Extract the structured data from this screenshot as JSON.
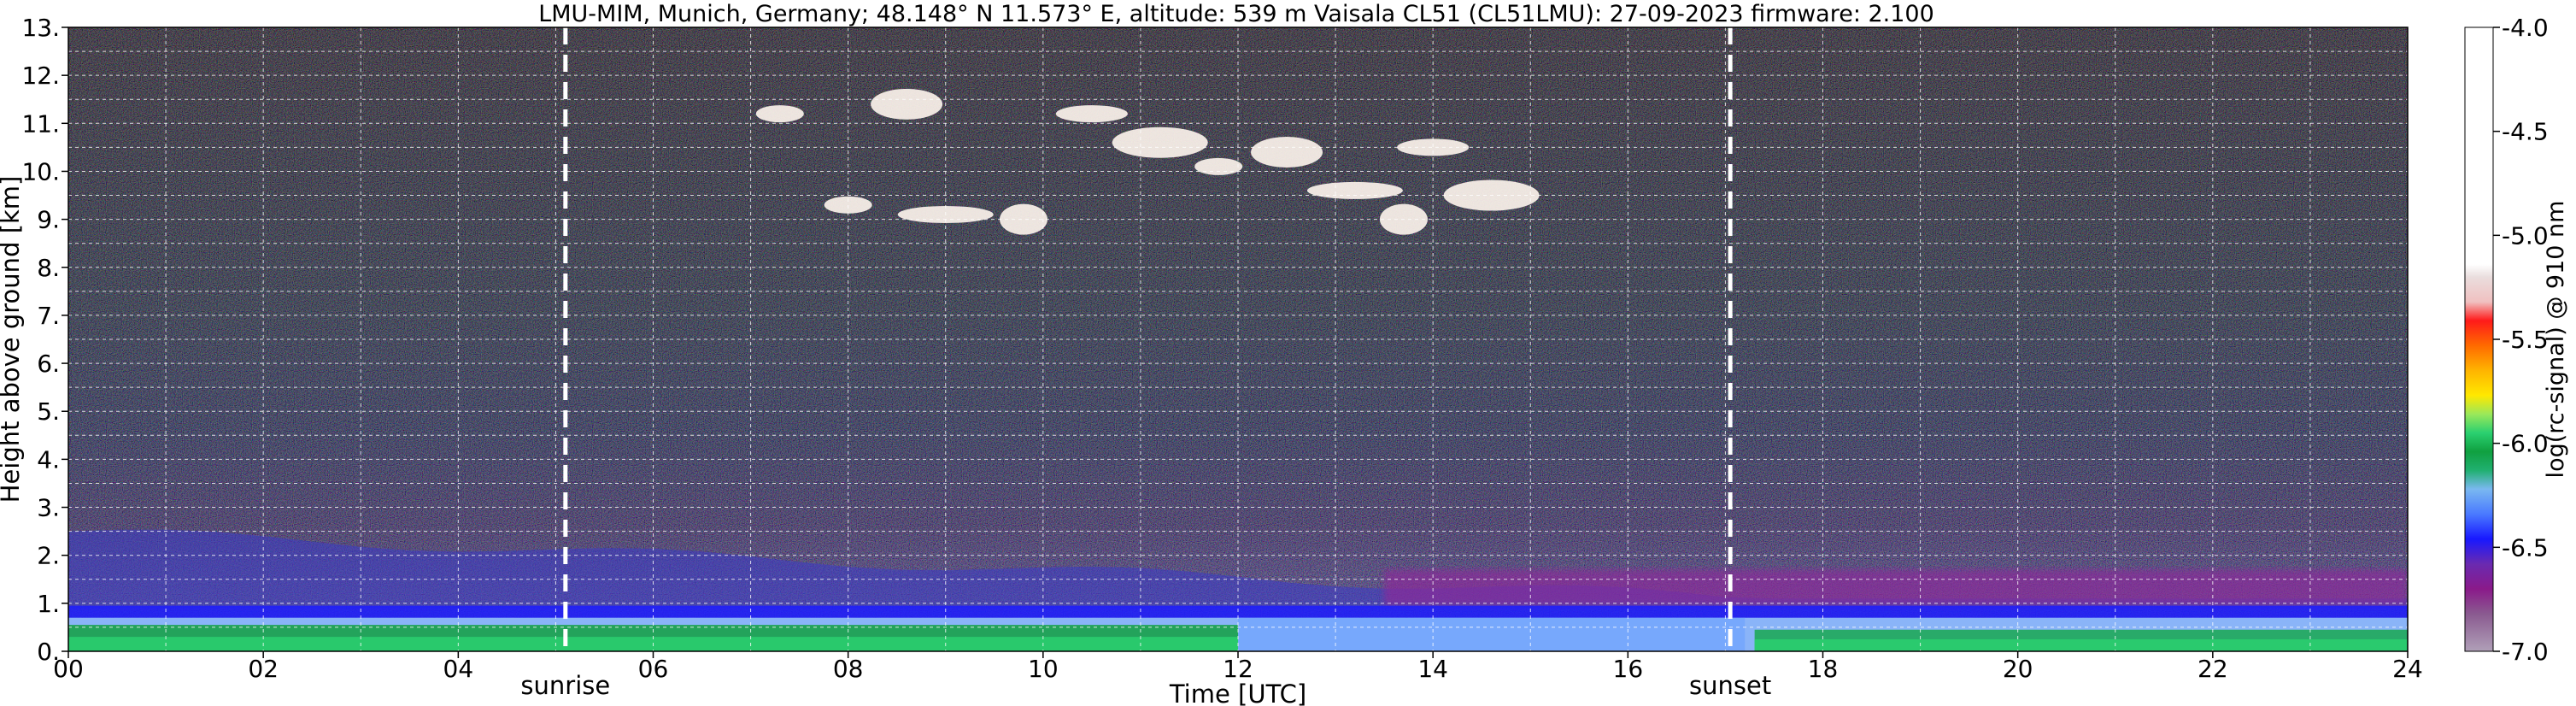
{
  "chart_data": {
    "type": "heatmap",
    "title": "LMU-MIM, Munich, Germany; 48.148° N 11.573° E, altitude: 539 m    Vaisala CL51 (CL51LMU): 27-09-2023    firmware: 2.100",
    "xlabel": "Time [UTC]",
    "ylabel": "Height above ground [km]",
    "xlim": [
      0,
      24
    ],
    "ylim": [
      0,
      13
    ],
    "x_ticks": [
      "00",
      "02",
      "04",
      "06",
      "08",
      "10",
      "12",
      "14",
      "16",
      "18",
      "20",
      "22",
      "24"
    ],
    "y_ticks": [
      "0.",
      "1.",
      "2.",
      "3.",
      "4.",
      "5.",
      "6.",
      "7.",
      "8.",
      "9.",
      "10.",
      "11.",
      "12.",
      "13."
    ],
    "grid": true,
    "colorbar": {
      "label": "log(rc-signal) @ 910 nm",
      "range": [
        -7.0,
        -4.0
      ],
      "ticks": [
        "-4.0",
        "-4.5",
        "-5.0",
        "-5.5",
        "-6.0",
        "-6.5",
        "-7.0"
      ]
    },
    "annotations": [
      {
        "label": "sunrise",
        "x": 5.1
      },
      {
        "label": "sunset",
        "x": 17.05
      }
    ],
    "features": {
      "boundary_layer_top_km": 0.9,
      "residual_layer_top_km": 2.5,
      "cirrus_cloud": {
        "time_range": [
          7.0,
          15.5
        ],
        "height_range_km": [
          8.5,
          11.5
        ]
      }
    }
  }
}
